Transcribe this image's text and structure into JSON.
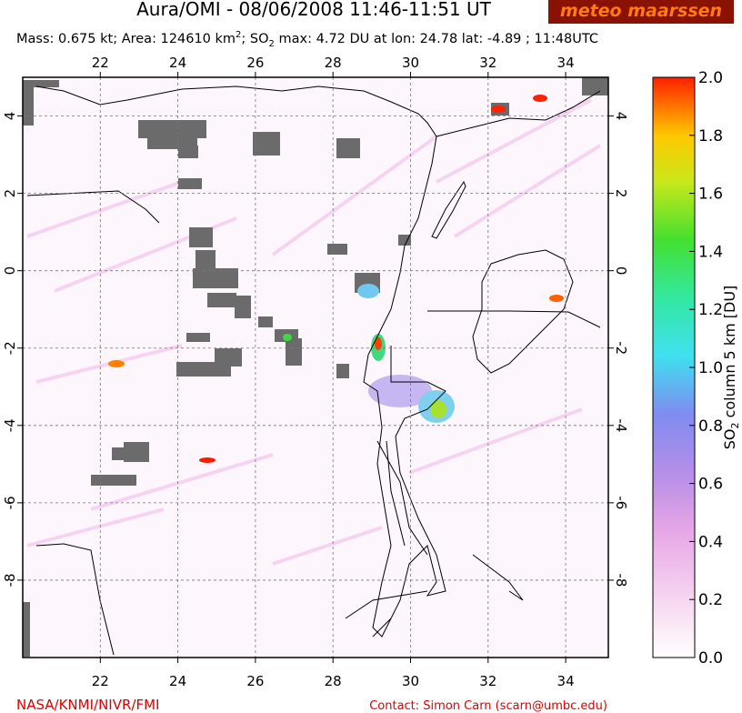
{
  "map": {
    "title": "Aura/OMI - 08/06/2008 11:46-11:51 UT",
    "logo": "meteo maarssen",
    "subtitle": [
      "Mass: 0.675 kt; Area: 124610 km",
      "2",
      "; SO",
      "2",
      " max: 4.72 DU at lon: 24.78 lat: -4.89 ; 11:48UTC"
    ],
    "lonlim": [
      20,
      35.1
    ],
    "latlim": [
      -10,
      5
    ],
    "xticks": [
      22,
      24,
      26,
      28,
      30,
      32,
      34
    ],
    "yticks": [
      4,
      2,
      0,
      -2,
      -4,
      -6,
      -8
    ],
    "grid": true,
    "colorbar": {
      "label": [
        "SO",
        "2",
        " column 5 km [DU]"
      ],
      "lim": [
        0,
        2
      ],
      "ticks": [
        {
          "value": 0,
          "label": "0.0"
        },
        {
          "value": 0.2,
          "label": "0.2"
        },
        {
          "value": 0.4,
          "label": "0.4"
        },
        {
          "value": 0.6,
          "label": "0.6"
        },
        {
          "value": 0.8,
          "label": "0.8"
        },
        {
          "value": 1,
          "label": "1.0"
        },
        {
          "value": 1.2,
          "label": "1.2"
        },
        {
          "value": 1.4,
          "label": "1.4"
        },
        {
          "value": 1.6,
          "label": "1.6"
        },
        {
          "value": 1.8,
          "label": "1.8"
        },
        {
          "value": 2,
          "label": "2.0"
        }
      ]
    },
    "footer_left": "NASA/KNMI/NIVR/FMI",
    "footer_right": "Contact: Simon Carn (scarn@umbc.edu)"
  }
}
